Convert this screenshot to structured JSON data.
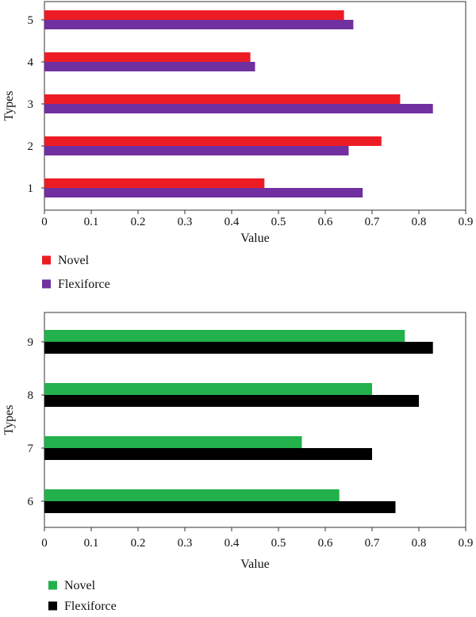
{
  "chart_data": [
    {
      "type": "bar",
      "orientation": "horizontal",
      "categories": [
        "1",
        "2",
        "3",
        "4",
        "5"
      ],
      "series": [
        {
          "name": "Novel",
          "color": "#ed1c24",
          "values": [
            0.47,
            0.72,
            0.76,
            0.44,
            0.64
          ]
        },
        {
          "name": "Flexiforce",
          "color": "#7030a0",
          "values": [
            0.68,
            0.65,
            0.83,
            0.45,
            0.66
          ]
        }
      ],
      "xlabel": "Value",
      "ylabel": "Types",
      "xlim": [
        0,
        0.9
      ],
      "xticks": [
        "0",
        "0.1",
        "0.2",
        "0.3",
        "0.4",
        "0.5",
        "0.6",
        "0.7",
        "0.8",
        "0.9"
      ],
      "grid": false,
      "legend_position": "bottom-left"
    },
    {
      "type": "bar",
      "orientation": "horizontal",
      "categories": [
        "6",
        "7",
        "8",
        "9"
      ],
      "series": [
        {
          "name": "Novel",
          "color": "#22b14c",
          "values": [
            0.63,
            0.55,
            0.7,
            0.77
          ]
        },
        {
          "name": "Flexiforce",
          "color": "#000000",
          "values": [
            0.75,
            0.7,
            0.8,
            0.83
          ]
        }
      ],
      "xlabel": "Value",
      "ylabel": "Types",
      "xlim": [
        0,
        0.9
      ],
      "xticks": [
        "0",
        "0.1",
        "0.2",
        "0.3",
        "0.4",
        "0.5",
        "0.6",
        "0.7",
        "0.8",
        "0.9"
      ],
      "grid": false,
      "legend_position": "bottom-left"
    }
  ]
}
